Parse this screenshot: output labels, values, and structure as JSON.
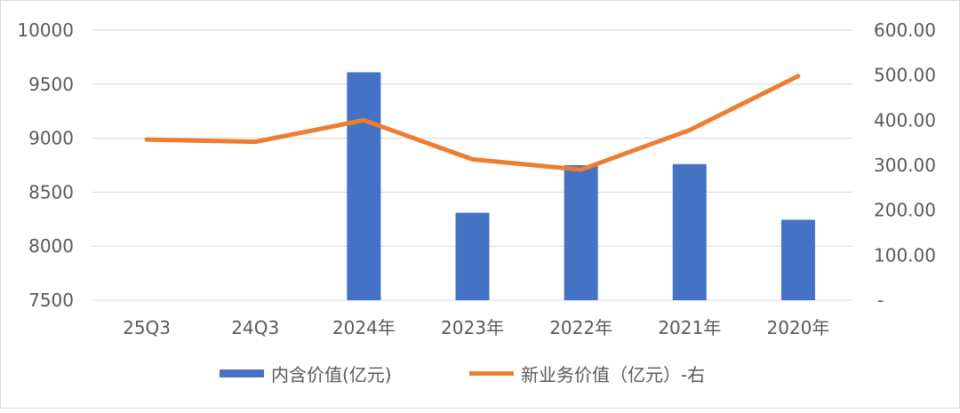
{
  "chart_data": {
    "type": "bar+line",
    "categories": [
      "25Q3",
      "24Q3",
      "2024年",
      "2023年",
      "2022年",
      "2021年",
      "2020年"
    ],
    "series": [
      {
        "name": "内含价值(亿元)",
        "type": "bar",
        "axis": "left",
        "values": [
          null,
          null,
          9610,
          8310,
          8750,
          8760,
          8245
        ]
      },
      {
        "name": "新业务价值（亿元）-右",
        "type": "line",
        "axis": "right",
        "values": [
          357,
          352,
          400,
          313,
          290,
          378,
          498
        ]
      }
    ],
    "y_left": {
      "range": [
        7500,
        10000
      ],
      "ticks": [
        "7500",
        "8000",
        "8500",
        "9000",
        "9500",
        "10000"
      ]
    },
    "y_right": {
      "range": [
        0,
        600
      ],
      "ticks": [
        "-",
        "100.00",
        "200.00",
        "300.00",
        "400.00",
        "500.00",
        "600.00"
      ]
    },
    "grid": "horizontal",
    "legend_position": "bottom"
  },
  "colors": {
    "bar": "#4472C4",
    "line": "#ED7D31",
    "grid": "#d9d9d9",
    "text": "#595959"
  }
}
